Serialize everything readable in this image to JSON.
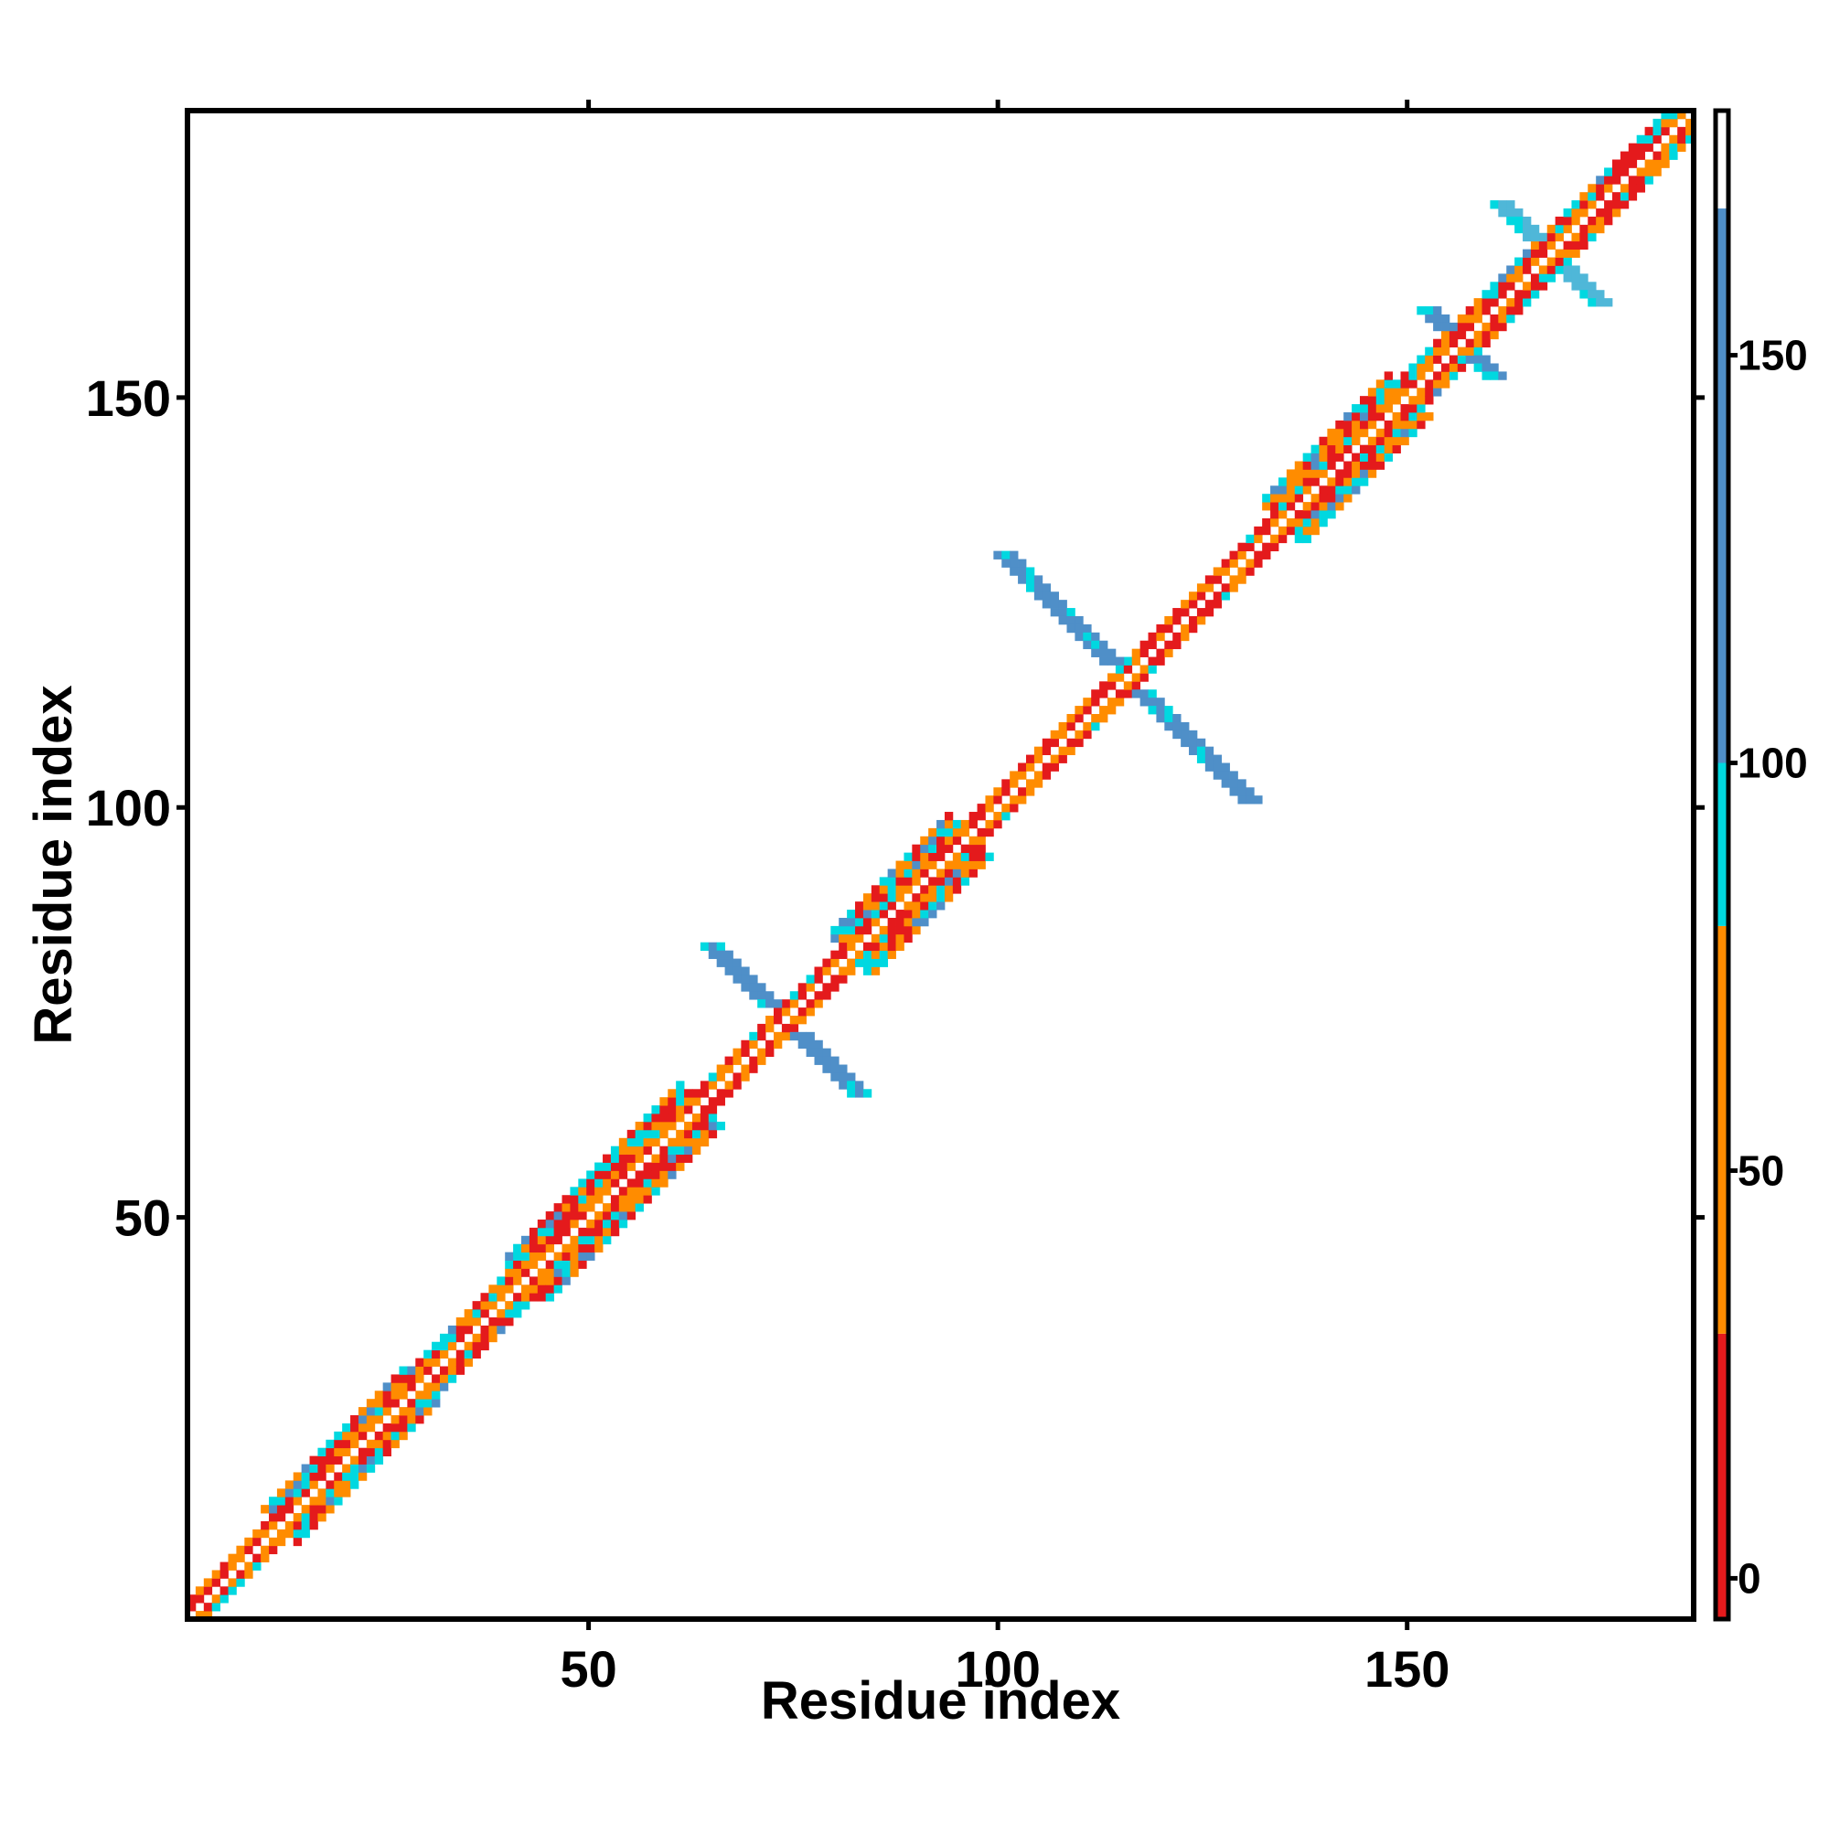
{
  "chart_data": {
    "type": "heatmap",
    "title": "",
    "xlabel": "Residue index",
    "ylabel": "Residue index",
    "xlim": [
      1,
      185
    ],
    "ylim": [
      1,
      185
    ],
    "x_ticks": [
      50,
      100,
      150
    ],
    "y_ticks": [
      50,
      100,
      150
    ],
    "grid": false,
    "colorbar": {
      "range": [
        -5,
        180
      ],
      "ticks": [
        0,
        50,
        100,
        150
      ],
      "bands": [
        {
          "from": -5,
          "to": 30,
          "color": "#e41a1c"
        },
        {
          "from": 30,
          "to": 80,
          "color": "#ff8c00"
        },
        {
          "from": 80,
          "to": 100,
          "color": "#00d8e0"
        },
        {
          "from": 100,
          "to": 168,
          "color": "#4f8fc8"
        },
        {
          "from": 168,
          "to": 180,
          "color": "#ffffff"
        }
      ]
    },
    "diagonal_band": {
      "from": 1,
      "to": 185,
      "segments": [
        {
          "from": 1,
          "to": 12,
          "half_width": 2
        },
        {
          "from": 12,
          "to": 30,
          "half_width": 4
        },
        {
          "from": 30,
          "to": 42,
          "half_width": 3
        },
        {
          "from": 42,
          "to": 64,
          "half_width": 5
        },
        {
          "from": 64,
          "to": 82,
          "half_width": 2
        },
        {
          "from": 82,
          "to": 97,
          "half_width": 5
        },
        {
          "from": 97,
          "to": 135,
          "half_width": 2
        },
        {
          "from": 135,
          "to": 151,
          "half_width": 5
        },
        {
          "from": 151,
          "to": 185,
          "half_width": 3
        }
      ]
    },
    "cross_features": [
      {
        "center": [
          74,
          74
        ],
        "arm": 9,
        "color": "#4f8fc8"
      },
      {
        "center": [
          116,
          116
        ],
        "arm": 15,
        "color": "#4f8fc8"
      },
      {
        "center": [
          168,
          168
        ],
        "arm": 6,
        "color": "#4fb7d8"
      },
      {
        "center": [
          157,
          157
        ],
        "arm": 4,
        "color": "#4f8fc8"
      }
    ]
  }
}
